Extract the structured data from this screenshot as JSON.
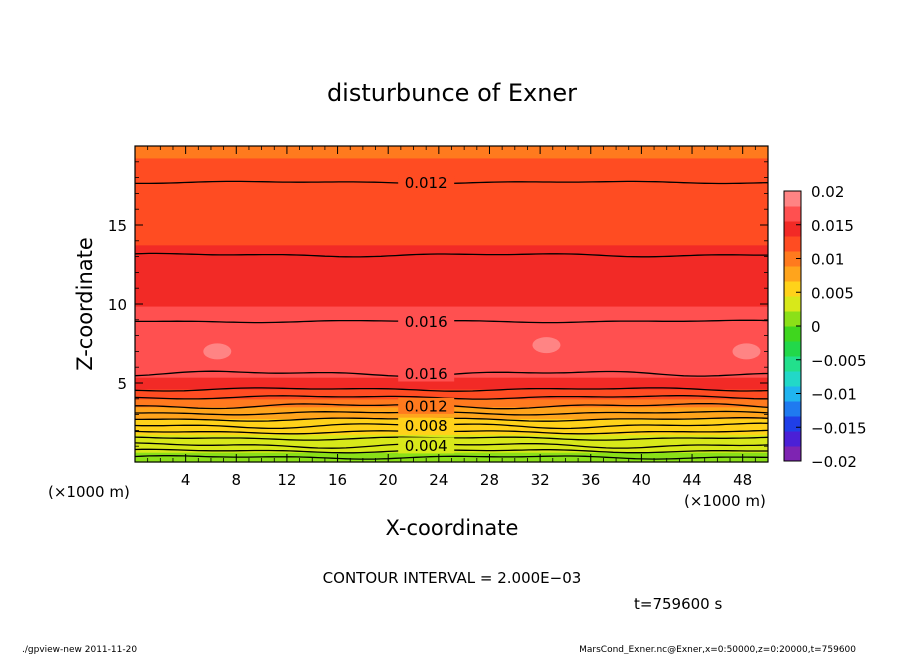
{
  "chart_data": {
    "type": "heatmap",
    "title": "disturbunce of Exner",
    "xlabel": "X-coordinate",
    "ylabel": "Z-coordinate",
    "x_unit_label": "(×1000 m)",
    "y_unit_label": "(×1000 m)",
    "xlim": [
      0,
      50
    ],
    "ylim": [
      0,
      20
    ],
    "x_ticks": [
      4,
      8,
      12,
      16,
      20,
      24,
      28,
      32,
      36,
      40,
      44,
      48
    ],
    "y_ticks": [
      5,
      10,
      15
    ],
    "colorbar": {
      "min": -0.02,
      "max": 0.02,
      "tick_labels": [
        "0.02",
        "0.015",
        "0.01",
        "0.005",
        "0",
        "−0.005",
        "−0.01",
        "−0.015",
        "−0.02"
      ],
      "colors": [
        "#7e24b2",
        "#4b20d6",
        "#1f3fe8",
        "#1f7af0",
        "#20b4f0",
        "#22d8c8",
        "#22e08c",
        "#22d84a",
        "#3fd61e",
        "#8be018",
        "#d8e81a",
        "#ffd21a",
        "#ffa41c",
        "#ff7a1e",
        "#ff4c22",
        "#f22a26",
        "#ff5050",
        "#ff8484"
      ]
    },
    "profile": {
      "z": [
        0,
        0.5,
        1,
        1.5,
        2,
        2.5,
        3,
        3.5,
        4,
        4.5,
        5,
        6,
        7,
        8,
        9,
        10,
        11,
        12,
        13,
        14,
        15,
        16,
        17,
        18,
        19,
        20
      ],
      "value": [
        0.001,
        0.002,
        0.003,
        0.004,
        0.005,
        0.006,
        0.0075,
        0.009,
        0.011,
        0.013,
        0.015,
        0.0165,
        0.017,
        0.0168,
        0.0162,
        0.0155,
        0.0148,
        0.0142,
        0.0137,
        0.0132,
        0.0128,
        0.0124,
        0.012,
        0.0116,
        0.0112,
        0.0108
      ]
    },
    "contours": [
      {
        "label": "0.012",
        "z": 17.7
      },
      {
        "label": "0.016",
        "z": 8.9
      },
      {
        "label": "0.016",
        "z": 5.6
      },
      {
        "label": "0.012",
        "z": 3.55
      },
      {
        "label": "0.008",
        "z": 2.3
      },
      {
        "label": "0.004",
        "z": 1.05
      }
    ],
    "extra_contours_z": [
      13.1,
      4.6,
      4.1,
      3.1,
      2.7,
      1.9,
      1.5,
      0.7,
      0.3
    ],
    "contour_interval_text": "CONTOUR INTERVAL = 2.000E−03",
    "time_text": "t=759600 s",
    "footer_left": "./gpview-new  2011-11-20",
    "footer_right": "MarsCond_Exner.nc@Exner,x=0:50000,z=0:20000,t=759600"
  }
}
